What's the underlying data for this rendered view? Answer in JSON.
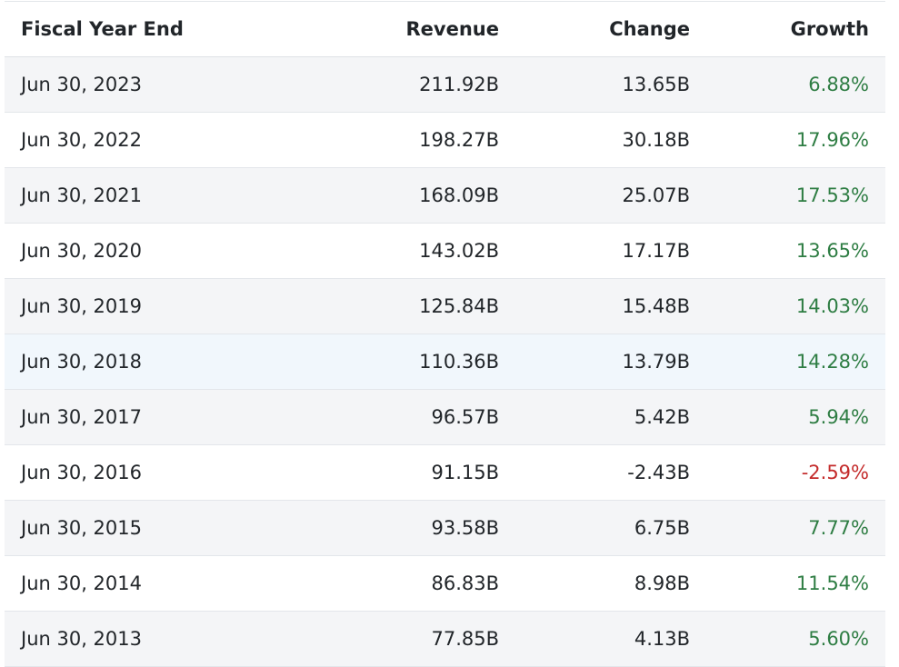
{
  "columns": [
    "Fiscal Year End",
    "Revenue",
    "Change",
    "Growth"
  ],
  "rows": [
    {
      "date": "Jun 30, 2023",
      "revenue": "211.92B",
      "change": "13.65B",
      "growth": "6.88%",
      "dir": "pos"
    },
    {
      "date": "Jun 30, 2022",
      "revenue": "198.27B",
      "change": "30.18B",
      "growth": "17.96%",
      "dir": "pos"
    },
    {
      "date": "Jun 30, 2021",
      "revenue": "168.09B",
      "change": "25.07B",
      "growth": "17.53%",
      "dir": "pos"
    },
    {
      "date": "Jun 30, 2020",
      "revenue": "143.02B",
      "change": "17.17B",
      "growth": "13.65%",
      "dir": "pos"
    },
    {
      "date": "Jun 30, 2019",
      "revenue": "125.84B",
      "change": "15.48B",
      "growth": "14.03%",
      "dir": "pos"
    },
    {
      "date": "Jun 30, 2018",
      "revenue": "110.36B",
      "change": "13.79B",
      "growth": "14.28%",
      "dir": "pos",
      "highlight": true
    },
    {
      "date": "Jun 30, 2017",
      "revenue": "96.57B",
      "change": "5.42B",
      "growth": "5.94%",
      "dir": "pos"
    },
    {
      "date": "Jun 30, 2016",
      "revenue": "91.15B",
      "change": "-2.43B",
      "growth": "-2.59%",
      "dir": "neg"
    },
    {
      "date": "Jun 30, 2015",
      "revenue": "93.58B",
      "change": "6.75B",
      "growth": "7.77%",
      "dir": "pos"
    },
    {
      "date": "Jun 30, 2014",
      "revenue": "86.83B",
      "change": "8.98B",
      "growth": "11.54%",
      "dir": "pos"
    },
    {
      "date": "Jun 30, 2013",
      "revenue": "77.85B",
      "change": "4.13B",
      "growth": "5.60%",
      "dir": "pos"
    }
  ],
  "colors": {
    "positive": "#2e7d43",
    "negative": "#c42b2b",
    "stripe": "#f4f5f7",
    "highlight": "#f1f7fc"
  }
}
